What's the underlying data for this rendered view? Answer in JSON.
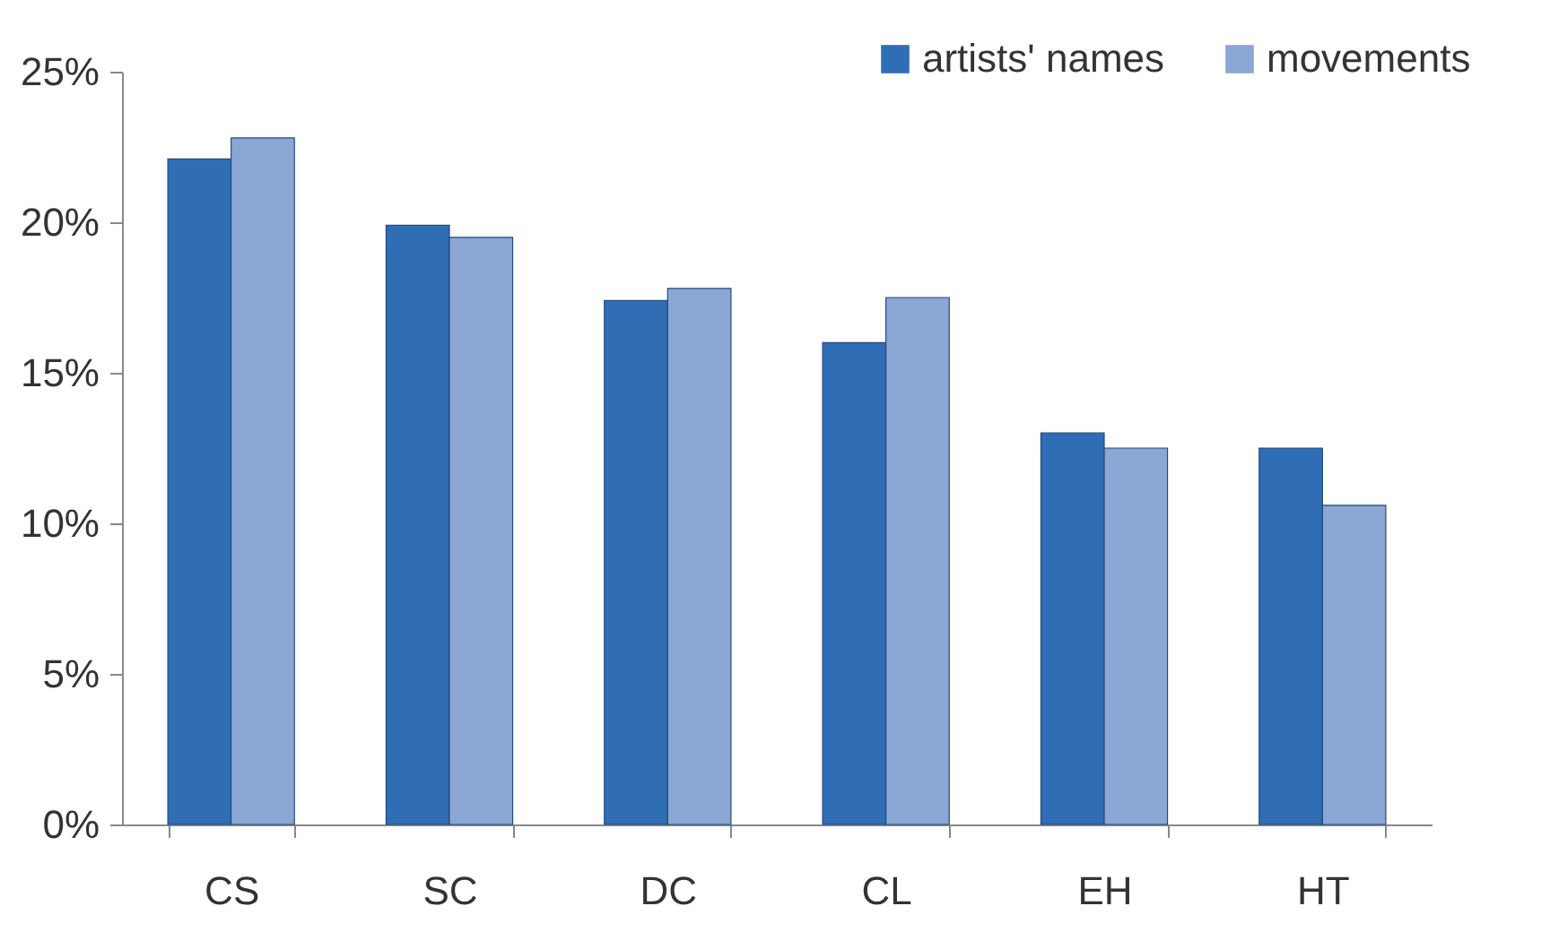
{
  "chart_data": {
    "type": "bar",
    "categories": [
      "CS",
      "SC",
      "DC",
      "CL",
      "EH",
      "HT"
    ],
    "series": [
      {
        "name": "artists' names",
        "color": "#2f6db5",
        "values": [
          22.1,
          19.9,
          17.4,
          16.0,
          13.0,
          12.5
        ]
      },
      {
        "name": "movements",
        "color": "#8ba7d5",
        "values": [
          22.8,
          19.5,
          17.8,
          17.5,
          12.5,
          10.6
        ]
      }
    ],
    "ylim": [
      0,
      25
    ],
    "yticks": [
      {
        "value": 0,
        "label": "0%"
      },
      {
        "value": 5,
        "label": "5%"
      },
      {
        "value": 10,
        "label": "10%"
      },
      {
        "value": 15,
        "label": "15%"
      },
      {
        "value": 20,
        "label": "20%"
      },
      {
        "value": 25,
        "label": "25%"
      }
    ],
    "grid": false,
    "legend": "top right"
  }
}
